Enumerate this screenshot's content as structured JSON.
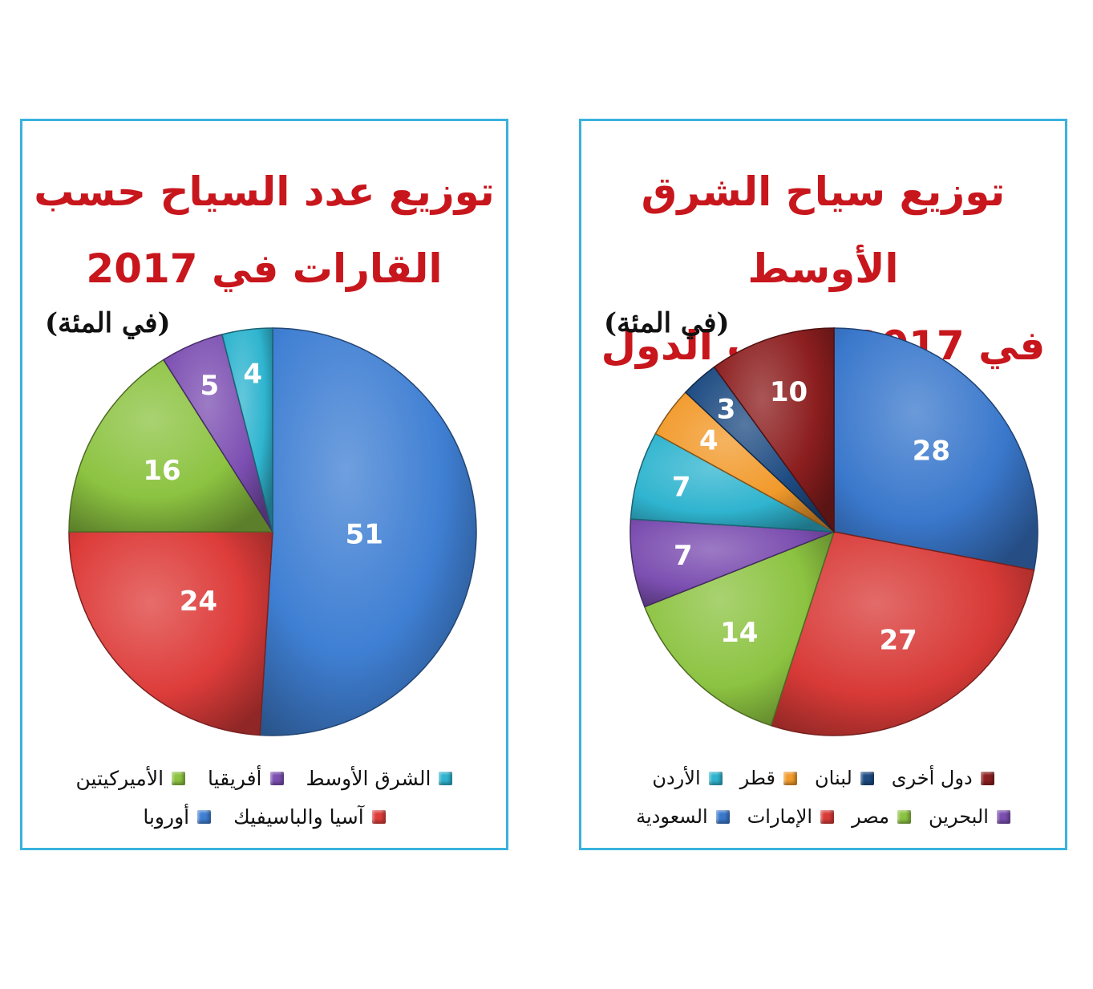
{
  "colors": {
    "border": "#39b2dd",
    "title": "#c8161d",
    "label": "#ffffff"
  },
  "chart_data": [
    {
      "type": "pie",
      "title_line1": "توزيع عدد السياح حسب",
      "title_line2": "القارات في 2017",
      "unit": "(في المئة)",
      "start_angle_deg": 0,
      "direction": "clockwise",
      "slices": [
        {
          "label": "أوروبا",
          "value": 51,
          "color": "#3f7fd3"
        },
        {
          "label": "آسيا والباسيفيك",
          "value": 24,
          "color": "#dd3c3a"
        },
        {
          "label": "الأميركيتين",
          "value": 16,
          "color": "#8cc341"
        },
        {
          "label": "أفريقيا",
          "value": 5,
          "color": "#7c4fb2"
        },
        {
          "label": "الشرق الأوسط",
          "value": 4,
          "color": "#2fb4cf"
        }
      ],
      "legend_rows": [
        [
          "الشرق الأوسط",
          "أفريقيا",
          "الأميركيتين"
        ],
        [
          "آسيا والباسيفيك",
          "أوروبا"
        ]
      ]
    },
    {
      "type": "pie",
      "title_line1": "توزيع سياح الشرق الأوسط",
      "title_line2": "في 2017 حسب الدول",
      "unit": "(في المئة)",
      "start_angle_deg": 0,
      "direction": "clockwise",
      "slices": [
        {
          "label": "السعودية",
          "value": 28,
          "color": "#3a78cc"
        },
        {
          "label": "الإمارات",
          "value": 27,
          "color": "#d83a37"
        },
        {
          "label": "مصر",
          "value": 14,
          "color": "#8cc341"
        },
        {
          "label": "البحرين",
          "value": 7,
          "color": "#7b4eb0"
        },
        {
          "label": "الأردن",
          "value": 7,
          "color": "#2fb4cf"
        },
        {
          "label": "قطر",
          "value": 4,
          "color": "#f29a2b"
        },
        {
          "label": "لبنان",
          "value": 3,
          "color": "#1d4b82"
        },
        {
          "label": "دول أخرى",
          "value": 10,
          "color": "#8c1e1f"
        }
      ],
      "legend_rows": [
        [
          "دول أخرى",
          "لبنان",
          "قطر",
          "الأردن"
        ],
        [
          "البحرين",
          "مصر",
          "الإمارات",
          "السعودية"
        ]
      ]
    }
  ]
}
